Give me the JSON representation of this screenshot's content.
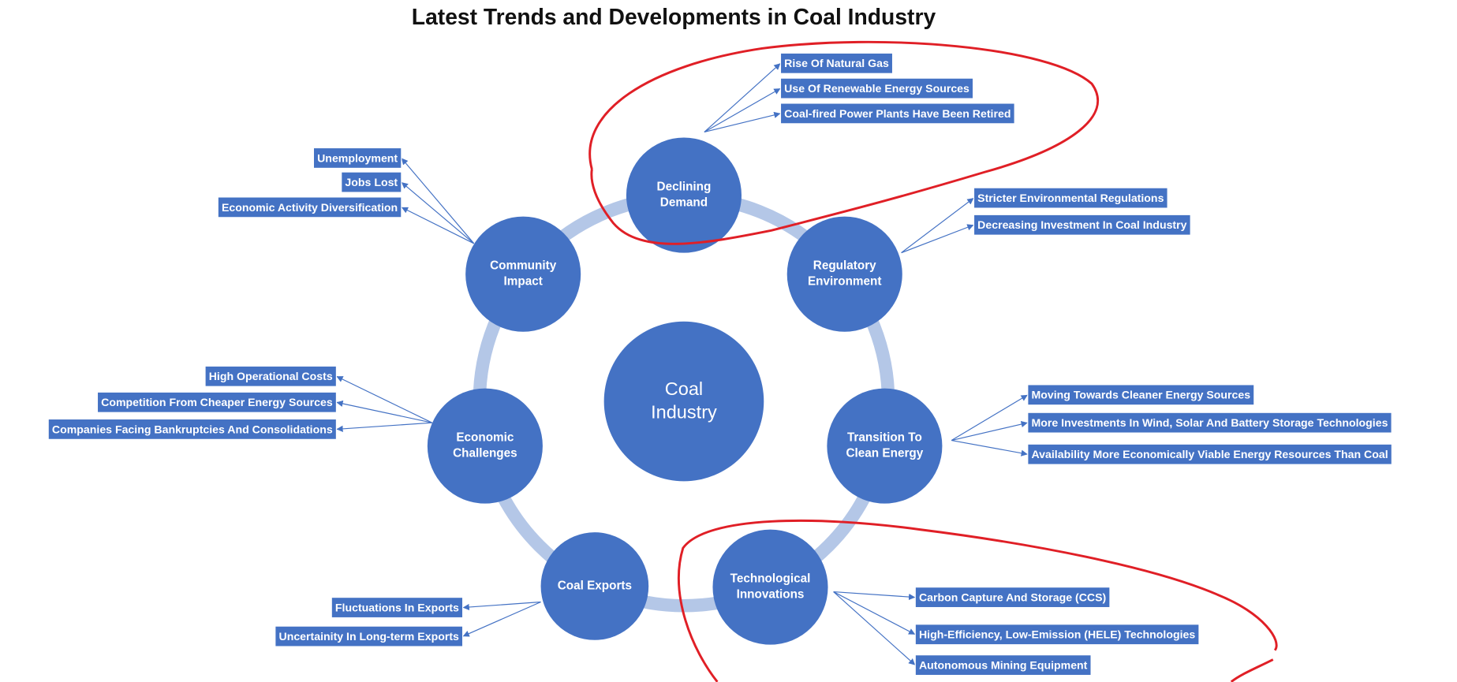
{
  "title": "Latest Trends and Developments in Coal Industry",
  "center": {
    "label_lines": [
      "Coal",
      "Industry"
    ]
  },
  "nodes": [
    {
      "label_lines": [
        "Declining",
        "Demand"
      ],
      "items": [
        "Rise Of Natural Gas",
        "Use Of Renewable Energy Sources",
        "Coal-fired Power Plants Have Been Retired"
      ]
    },
    {
      "label_lines": [
        "Regulatory",
        "Environment"
      ],
      "items": [
        "Stricter Environmental Regulations",
        "Decreasing Investment In Coal Industry"
      ]
    },
    {
      "label_lines": [
        "Transition To",
        "Clean Energy"
      ],
      "items": [
        "Moving Towards Cleaner Energy Sources",
        "More Investments In Wind, Solar And Battery Storage Technologies",
        "Availability More Economically Viable Energy Resources Than Coal"
      ]
    },
    {
      "label_lines": [
        "Technological",
        "Innovations"
      ],
      "items": [
        "Carbon Capture And Storage (CCS)",
        "High-Efficiency, Low-Emission (HELE) Technologies",
        "Autonomous Mining Equipment"
      ]
    },
    {
      "label_lines": [
        "Coal Exports"
      ],
      "items": [
        "Fluctuations In Exports",
        "Uncertainity In Long-term  Exports"
      ]
    },
    {
      "label_lines": [
        "Economic",
        "Challenges"
      ],
      "items": [
        "High Operational Costs",
        "Competition From Cheaper Energy Sources",
        "Companies Facing Bankruptcies And Consolidations"
      ]
    },
    {
      "label_lines": [
        "Community",
        "Impact"
      ],
      "items": [
        "Unemployment",
        "Jobs Lost",
        "Economic Activity Diversification"
      ]
    }
  ]
}
